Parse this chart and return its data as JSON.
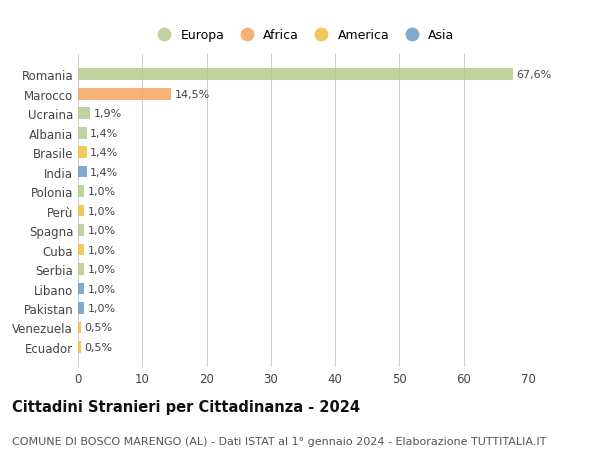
{
  "countries": [
    "Romania",
    "Marocco",
    "Ucraina",
    "Albania",
    "Brasile",
    "India",
    "Polonia",
    "Perù",
    "Spagna",
    "Cuba",
    "Serbia",
    "Libano",
    "Pakistan",
    "Venezuela",
    "Ecuador"
  ],
  "values": [
    67.6,
    14.5,
    1.9,
    1.4,
    1.4,
    1.4,
    1.0,
    1.0,
    1.0,
    1.0,
    1.0,
    1.0,
    1.0,
    0.5,
    0.5
  ],
  "labels": [
    "67,6%",
    "14,5%",
    "1,9%",
    "1,4%",
    "1,4%",
    "1,4%",
    "1,0%",
    "1,0%",
    "1,0%",
    "1,0%",
    "1,0%",
    "1,0%",
    "1,0%",
    "0,5%",
    "0,5%"
  ],
  "continents": [
    "Europa",
    "Africa",
    "Europa",
    "Europa",
    "America",
    "Asia",
    "Europa",
    "America",
    "Europa",
    "America",
    "Europa",
    "Asia",
    "Asia",
    "America",
    "America"
  ],
  "continent_colors": {
    "Europa": "#b5cc8e",
    "Africa": "#f4a460",
    "America": "#f0c040",
    "Asia": "#6b9bc8"
  },
  "legend_order": [
    "Europa",
    "Africa",
    "America",
    "Asia"
  ],
  "legend_colors": [
    "#b5cc8e",
    "#f4a460",
    "#f0c040",
    "#6b9bc8"
  ],
  "xlim": [
    0,
    70
  ],
  "xticks": [
    0,
    10,
    20,
    30,
    40,
    50,
    60,
    70
  ],
  "title": "Cittadini Stranieri per Cittadinanza - 2024",
  "subtitle": "COMUNE DI BOSCO MARENGO (AL) - Dati ISTAT al 1° gennaio 2024 - Elaborazione TUTTITALIA.IT",
  "background_color": "#ffffff",
  "grid_color": "#cccccc",
  "bar_height": 0.6,
  "title_fontsize": 10.5,
  "subtitle_fontsize": 8,
  "label_fontsize": 8,
  "tick_fontsize": 8.5,
  "legend_fontsize": 9
}
